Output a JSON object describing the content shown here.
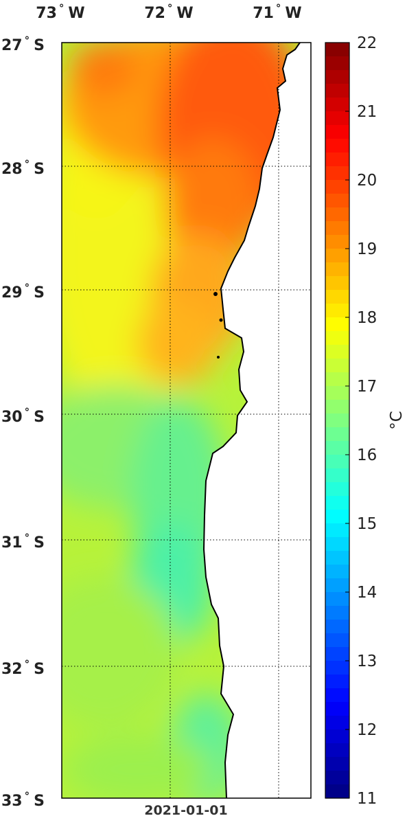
{
  "map": {
    "lon_ticks": [
      {
        "deg": "73",
        "hem": "W"
      },
      {
        "deg": "72",
        "hem": "W"
      },
      {
        "deg": "71",
        "hem": "W"
      }
    ],
    "lat_ticks": [
      {
        "deg": "27",
        "hem": "S"
      },
      {
        "deg": "28",
        "hem": "S"
      },
      {
        "deg": "29",
        "hem": "S"
      },
      {
        "deg": "30",
        "hem": "S"
      },
      {
        "deg": "31",
        "hem": "S"
      },
      {
        "deg": "32",
        "hem": "S"
      },
      {
        "deg": "33",
        "hem": "S"
      }
    ],
    "degree_symbol": "°",
    "date": "2021-01-01"
  },
  "colorbar": {
    "ticks": [
      "22",
      "21",
      "20",
      "19",
      "18",
      "17",
      "16",
      "15",
      "14",
      "13",
      "12",
      "11"
    ],
    "unit": "°C",
    "colormap": "jet"
  }
}
